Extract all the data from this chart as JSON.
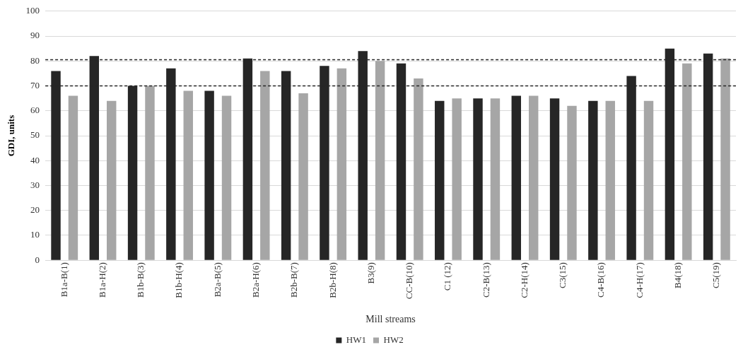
{
  "chart_data": {
    "type": "bar",
    "xlabel": "Mill streams",
    "ylabel": "GDI, units",
    "categories": [
      "B1a-B(1)",
      "B1a-H(2)",
      "B1b-B(3)",
      "B1b-H(4)",
      "B2a-B(5)",
      "B2a-H(6)",
      "B2b-B(7)",
      "B2b-H(8)",
      "B3(9)",
      "CC-B(10)",
      "C1 (12)",
      "C2-B(13)",
      "C2-H(14)",
      "C3(15)",
      "C4-B(16)",
      "C4-H(17)",
      "B4(18)",
      "C5(19)"
    ],
    "series": [
      {
        "name": "HW1",
        "color": "#262626",
        "values": [
          76,
          82,
          70,
          77,
          68,
          81,
          76,
          78,
          84,
          79,
          64,
          65,
          66,
          65,
          64,
          74,
          85,
          83
        ]
      },
      {
        "name": "HW2",
        "color": "#a6a6a6",
        "values": [
          66,
          64,
          70,
          68,
          66,
          76,
          67,
          77,
          80,
          73,
          65,
          65,
          66,
          62,
          64,
          64,
          79,
          81
        ]
      }
    ],
    "ylim": [
      0,
      100
    ],
    "yticks": [
      0,
      10,
      20,
      30,
      40,
      50,
      60,
      70,
      80,
      90,
      100
    ],
    "grid": "y",
    "legend": "bottom",
    "ref_lines": [
      {
        "axis": "y",
        "value": 80.5,
        "color": "#262626",
        "line_style": "dashed"
      },
      {
        "axis": "y",
        "value": 70,
        "color": "#262626",
        "line_style": "dashed"
      }
    ]
  }
}
